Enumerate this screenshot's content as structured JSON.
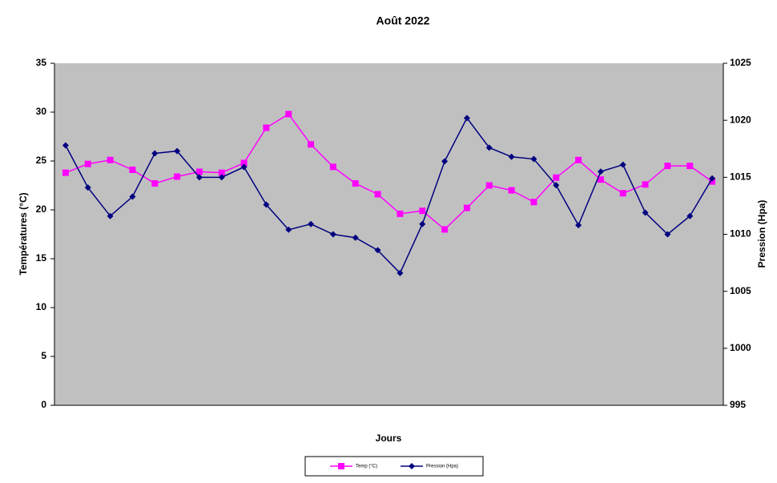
{
  "chart_data": {
    "type": "line",
    "title": "Août 2022",
    "x_label": "Jours",
    "y_label": "Températures (°C)",
    "y2_label": "Pression (Hpa)",
    "categories": [
      null,
      null,
      null,
      null,
      null,
      null,
      null,
      null,
      null,
      null,
      null,
      null,
      null,
      null,
      null,
      null,
      null,
      null,
      null,
      null,
      null,
      null,
      null,
      null,
      null,
      null,
      null,
      null,
      null,
      null
    ],
    "series": [
      {
        "name": "Temp (°C)",
        "color": "#ff00ff",
        "marker": "square",
        "values": [
          23.8,
          24.7,
          25.1,
          24.1,
          22.7,
          23.4,
          23.9,
          23.8,
          24.8,
          28.4,
          29.8,
          26.7,
          24.4,
          22.7,
          21.6,
          19.6,
          19.9,
          18.0,
          20.2,
          22.5,
          22.0,
          20.8,
          23.3,
          25.1,
          23.1,
          21.7,
          22.6,
          24.5,
          24.5,
          22.9
        ]
      },
      {
        "name": "Pression (Hpa)",
        "color": "#000080",
        "marker": "diamond",
        "axis": "y2",
        "values": [
          1017.8,
          1014.1,
          1011.6,
          1013.3,
          1017.1,
          1017.3,
          1015.0,
          1015.0,
          1015.9,
          1012.6,
          1010.4,
          1010.9,
          1010.0,
          1009.7,
          1008.6,
          1006.6,
          1010.9,
          1016.4,
          1020.2,
          1017.6,
          1016.8,
          1016.6,
          1014.3,
          1010.8,
          1015.5,
          1016.1,
          1011.9,
          1010.0,
          1011.6,
          1014.9
        ]
      }
    ],
    "ylim": [
      0,
      35
    ],
    "yticks": [
      0,
      5,
      10,
      15,
      20,
      25,
      30,
      35
    ],
    "y2lim": [
      995,
      1025
    ],
    "y2ticks": [
      995,
      1000,
      1005,
      1010,
      1015,
      1020,
      1025
    ],
    "plot_background": "#c0c0c0",
    "legend": "bottom"
  }
}
